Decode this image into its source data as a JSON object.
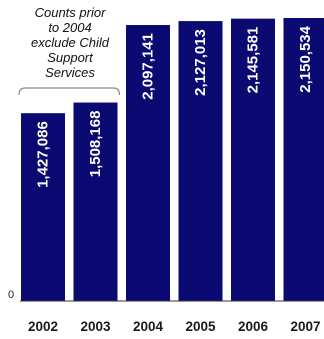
{
  "chart_data": {
    "type": "bar",
    "title": "",
    "xlabel": "",
    "ylabel": "",
    "categories": [
      "2002",
      "2003",
      "2004",
      "2005",
      "2006",
      "2007"
    ],
    "values": [
      1427086,
      1508168,
      2097141,
      2127013,
      2145581,
      2150534
    ],
    "value_labels": [
      "1,427,086",
      "1,508,168",
      "2,097,141",
      "2,127,013",
      "2,145,581",
      "2,150,534"
    ],
    "ylim": [
      0,
      2150534
    ],
    "y_ticks": [
      {
        "value": 0,
        "label": "0"
      }
    ],
    "grid": false,
    "bar_color": "#0a0a72",
    "annotation": {
      "lines": [
        "Counts prior",
        "to 2004",
        "exclude Child",
        "Support",
        "Services"
      ],
      "applies_to": [
        "2002",
        "2003"
      ]
    }
  }
}
